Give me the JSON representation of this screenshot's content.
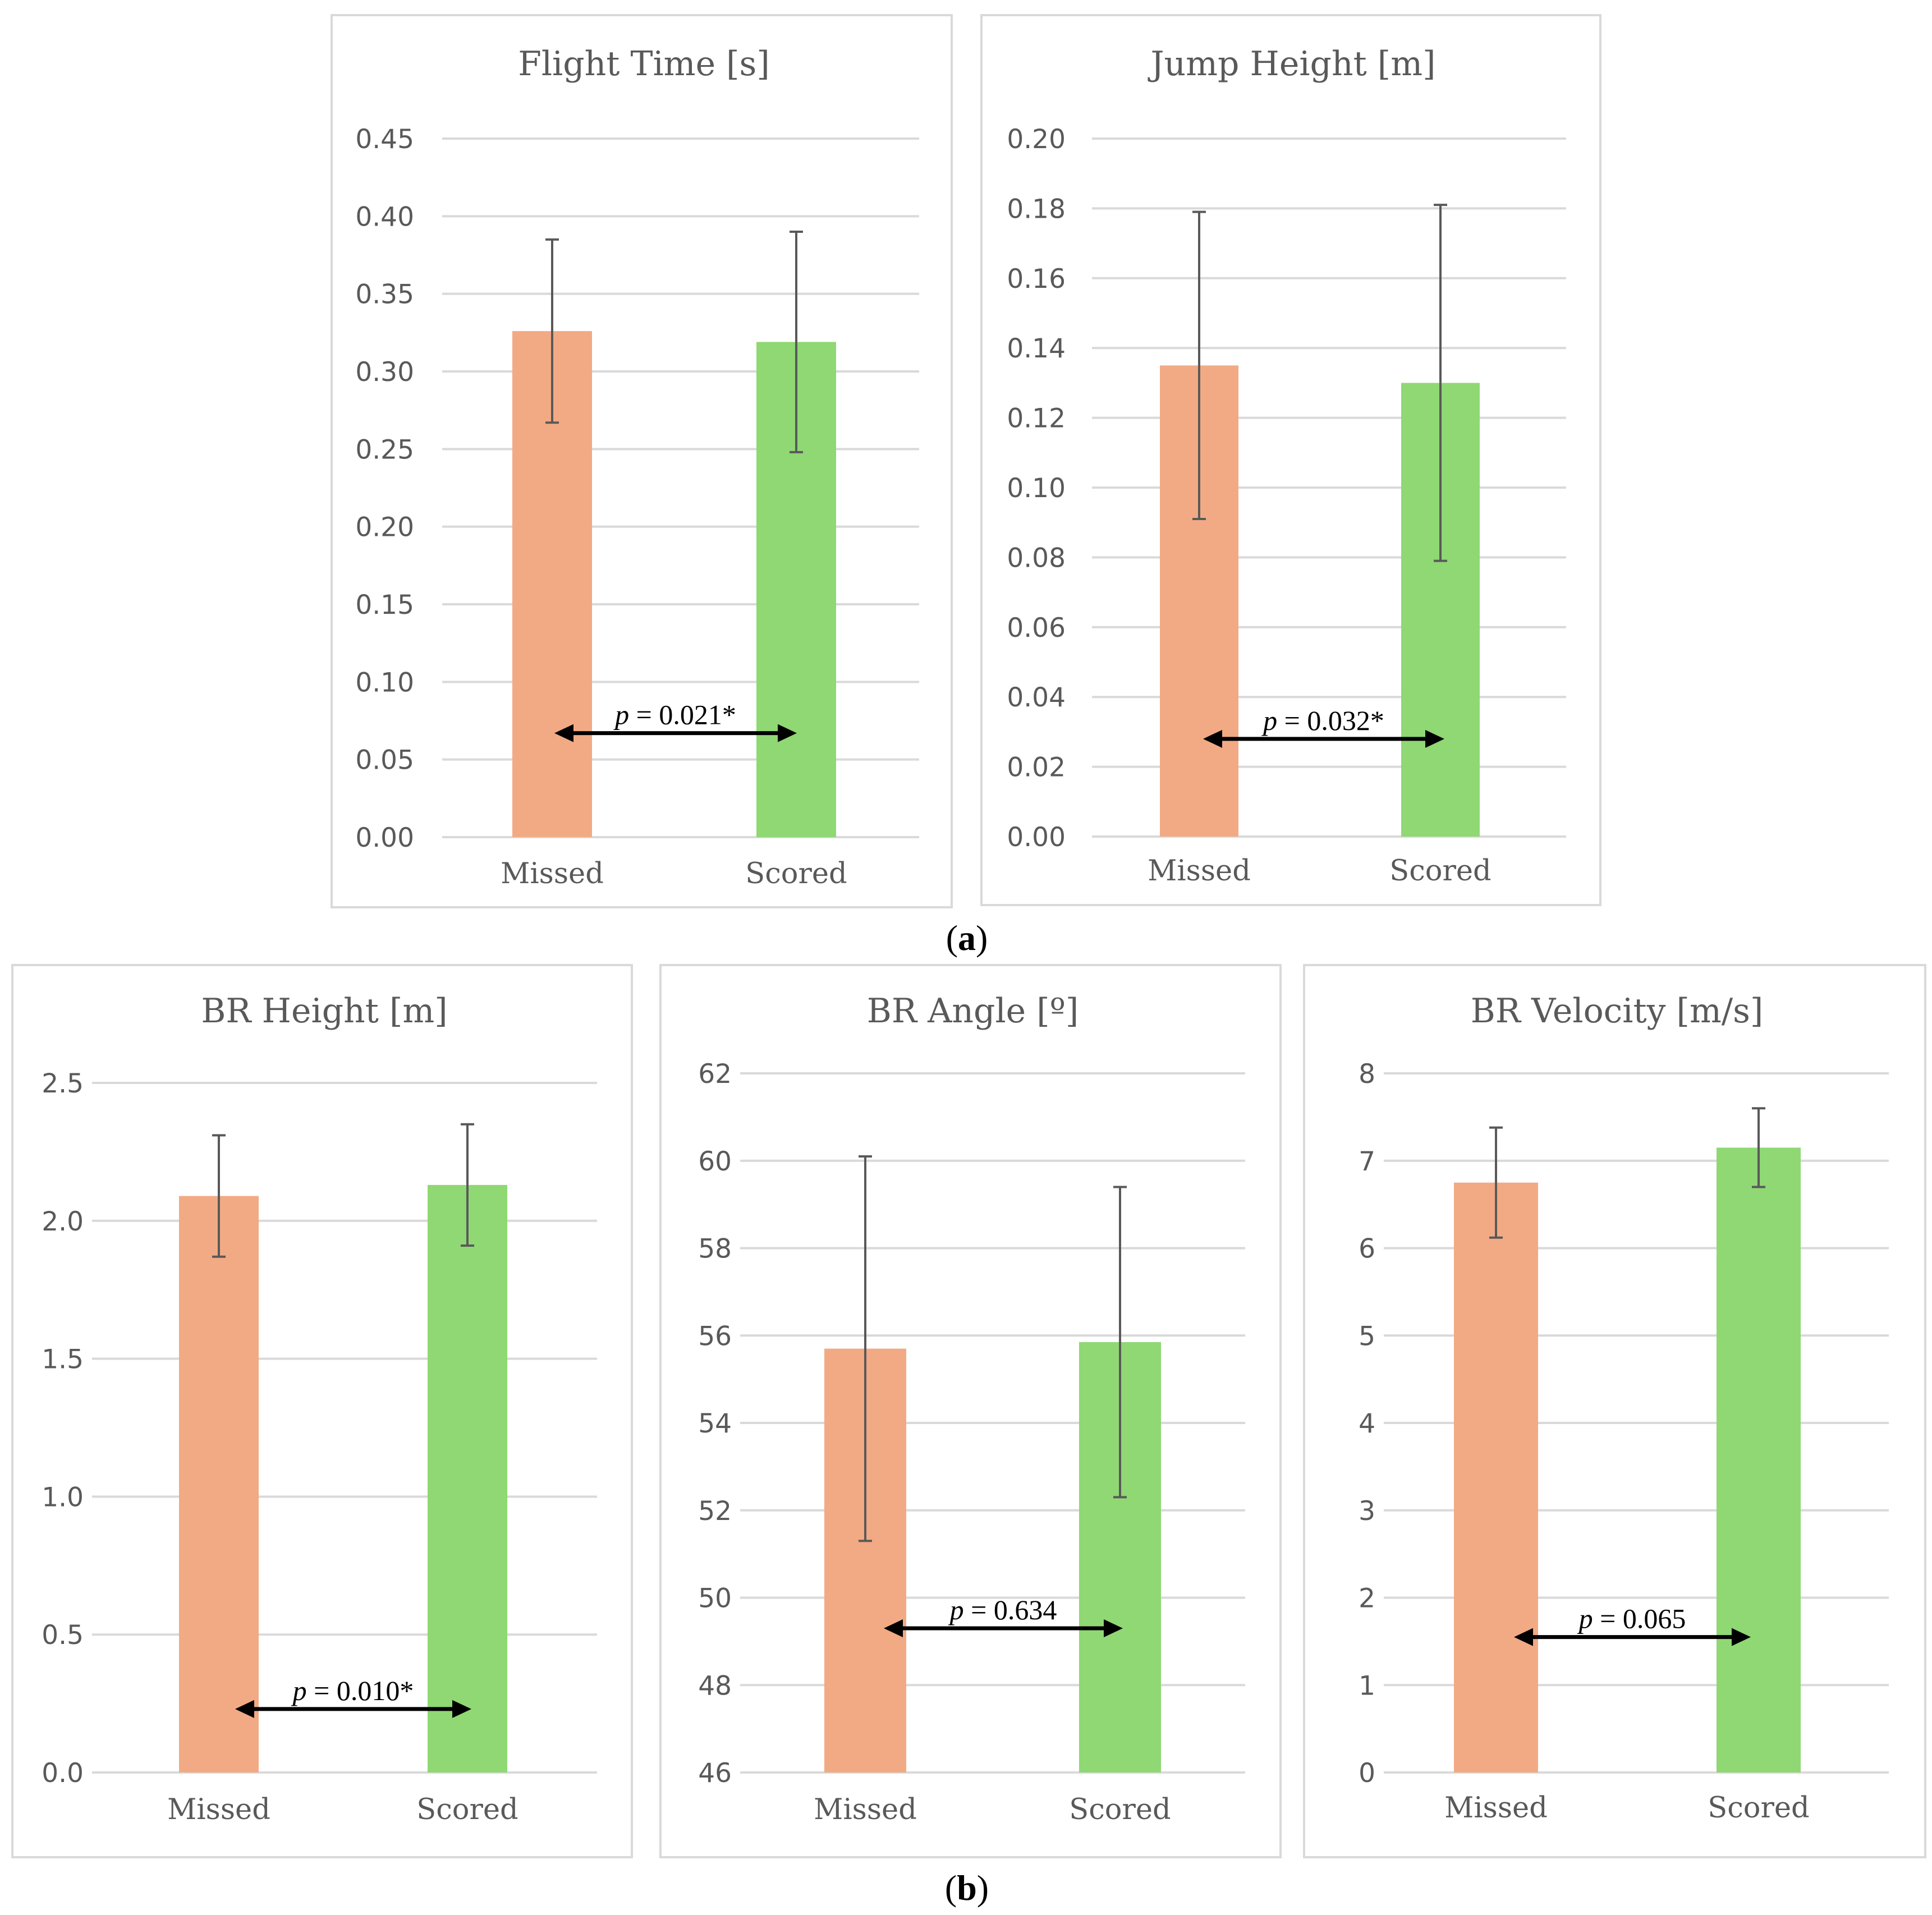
{
  "colors": {
    "missed": "#f2aa84",
    "scored": "#8fd874"
  },
  "labels": {
    "a": "a",
    "b": "b"
  },
  "chart_data": [
    {
      "type": "bar",
      "title": "Flight Time [s]",
      "categories": [
        "Missed",
        "Scored"
      ],
      "values": [
        0.326,
        0.319
      ],
      "error": [
        0.059,
        0.071
      ],
      "ylim": [
        0,
        0.45
      ],
      "yticks": [
        0,
        0.05,
        0.1,
        0.15,
        0.2,
        0.25,
        0.3,
        0.35,
        0.4,
        0.45
      ],
      "decimals": 2,
      "annotation": {
        "text": "p = 0.021*",
        "y": 0.067
      }
    },
    {
      "type": "bar",
      "title": "Jump Height [m]",
      "categories": [
        "Missed",
        "Scored"
      ],
      "values": [
        0.135,
        0.13
      ],
      "error": [
        0.044,
        0.051
      ],
      "ylim": [
        0,
        0.2
      ],
      "yticks": [
        0,
        0.02,
        0.04,
        0.06,
        0.08,
        0.1,
        0.12,
        0.14,
        0.16,
        0.18,
        0.2
      ],
      "decimals": 2,
      "annotation": {
        "text": "p = 0.032*",
        "y": 0.028
      }
    },
    {
      "type": "bar",
      "title": "BR Height [m]",
      "categories": [
        "Missed",
        "Scored"
      ],
      "values": [
        2.09,
        2.13
      ],
      "error": [
        0.22,
        0.22
      ],
      "ylim": [
        0,
        2.5
      ],
      "yticks": [
        0,
        0.5,
        1.0,
        1.5,
        2.0,
        2.5
      ],
      "decimals": 1,
      "annotation": {
        "text": "p = 0.010*",
        "y": 0.23
      }
    },
    {
      "type": "bar",
      "title": "BR Angle [º]",
      "categories": [
        "Missed",
        "Scored"
      ],
      "values": [
        55.7,
        55.85
      ],
      "error": [
        4.4,
        3.55
      ],
      "ylim": [
        46,
        62
      ],
      "yticks": [
        46,
        48,
        50,
        52,
        54,
        56,
        58,
        60,
        62
      ],
      "decimals": 0,
      "annotation": {
        "text": "p = 0.634",
        "y": 49.3
      }
    },
    {
      "type": "bar",
      "title": "BR Velocity [m/s]",
      "categories": [
        "Missed",
        "Scored"
      ],
      "values": [
        6.75,
        7.15
      ],
      "error": [
        0.63,
        0.45
      ],
      "ylim": [
        0,
        8
      ],
      "yticks": [
        0,
        1,
        2,
        3,
        4,
        5,
        6,
        7,
        8
      ],
      "decimals": 0,
      "annotation": {
        "text": "p = 0.065",
        "y": 1.55
      }
    }
  ]
}
